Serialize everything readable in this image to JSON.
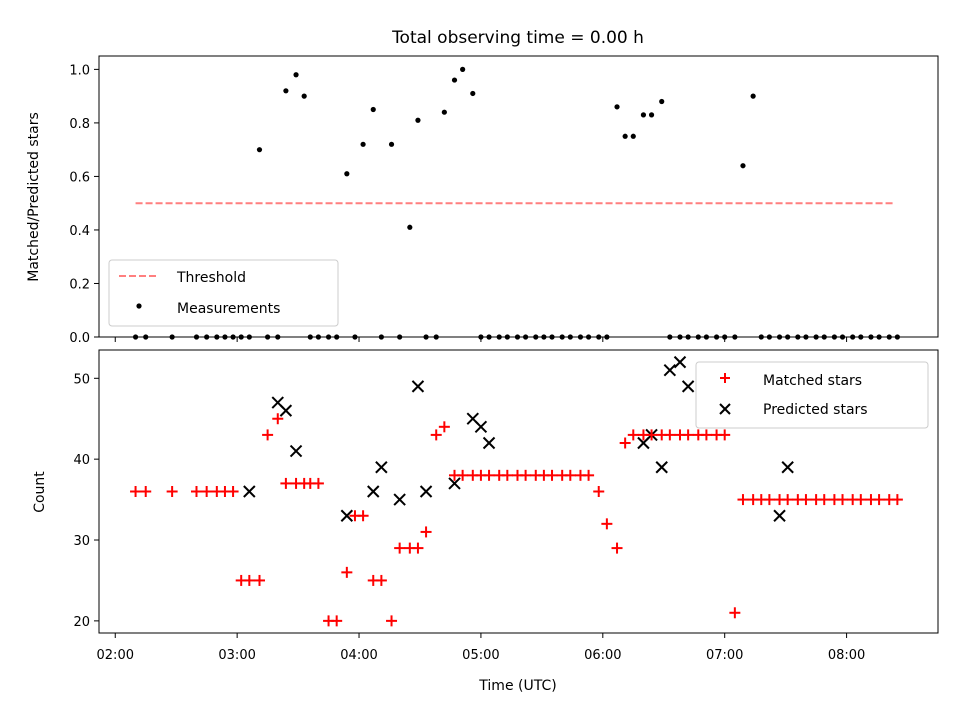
{
  "title": "Total observing time = 0.00 h",
  "xlabel": "Time (UTC)",
  "xticks": [
    "02:00",
    "03:00",
    "04:00",
    "05:00",
    "06:00",
    "07:00",
    "08:00"
  ],
  "chart_data": [
    {
      "type": "scatter",
      "ylabel": "Matched/Predicted stars",
      "xlim": [
        "01:52",
        "08:45"
      ],
      "ylim": [
        0,
        1.05
      ],
      "yticks": [
        "0.0",
        "0.2",
        "0.4",
        "0.6",
        "0.8",
        "1.0"
      ],
      "legend_position": "lower-left",
      "series": [
        {
          "name": "Threshold",
          "kind": "line",
          "style": "dashed",
          "color": "#ff7f7f",
          "x": [
            "02:10",
            "08:23"
          ],
          "y": [
            0.5,
            0.5
          ]
        },
        {
          "name": "Measurements",
          "kind": "scatter",
          "color": "#000000",
          "x": [
            "02:10",
            "02:15",
            "02:28",
            "02:40",
            "02:45",
            "02:50",
            "02:54",
            "02:58",
            "03:02",
            "03:06",
            "03:11",
            "03:15",
            "03:20",
            "03:24",
            "03:29",
            "03:33",
            "03:36",
            "03:40",
            "03:45",
            "03:49",
            "03:54",
            "03:58",
            "04:02",
            "04:07",
            "04:11",
            "04:16",
            "04:20",
            "04:25",
            "04:29",
            "04:33",
            "04:38",
            "04:42",
            "04:47",
            "04:51",
            "04:56",
            "05:00",
            "05:04",
            "05:09",
            "05:13",
            "05:18",
            "05:22",
            "05:27",
            "05:31",
            "05:35",
            "05:40",
            "05:44",
            "05:49",
            "05:53",
            "05:58",
            "06:02",
            "06:07",
            "06:11",
            "06:15",
            "06:20",
            "06:24",
            "06:29",
            "06:33",
            "06:38",
            "06:42",
            "06:47",
            "06:51",
            "06:56",
            "07:00",
            "07:05",
            "07:09",
            "07:14",
            "07:18",
            "07:22",
            "07:27",
            "07:31",
            "07:36",
            "07:40",
            "07:45",
            "07:49",
            "07:54",
            "07:58",
            "08:03",
            "08:07",
            "08:12",
            "08:16",
            "08:21",
            "08:25"
          ],
          "y": [
            0.0,
            0.0,
            0.0,
            0.0,
            0.0,
            0.0,
            0.0,
            0.0,
            0.0,
            0.0,
            0.7,
            0.0,
            0.0,
            0.92,
            0.98,
            0.9,
            0.0,
            0.0,
            0.0,
            0.0,
            0.61,
            0.0,
            0.72,
            0.85,
            0.0,
            0.72,
            0.0,
            0.41,
            0.81,
            0.0,
            0.0,
            0.84,
            0.96,
            1.0,
            0.91,
            0.0,
            0.0,
            0.0,
            0.0,
            0.0,
            0.0,
            0.0,
            0.0,
            0.0,
            0.0,
            0.0,
            0.0,
            0.0,
            0.0,
            0.0,
            0.86,
            0.75,
            0.75,
            0.83,
            0.83,
            0.88,
            0.0,
            0.0,
            0.0,
            0.0,
            0.0,
            0.0,
            0.0,
            0.0,
            0.64,
            0.9,
            0.0,
            0.0,
            0.0,
            0.0,
            0.0,
            0.0,
            0.0,
            0.0,
            0.0,
            0.0,
            0.0,
            0.0,
            0.0,
            0.0,
            0.0,
            0.0
          ]
        }
      ]
    },
    {
      "type": "scatter",
      "ylabel": "Count",
      "xlim": [
        "01:52",
        "08:45"
      ],
      "ylim": [
        18.5,
        53.5
      ],
      "yticks": [
        "20",
        "30",
        "40",
        "50"
      ],
      "legend_position": "upper-right",
      "series": [
        {
          "name": "Matched stars",
          "kind": "scatter",
          "marker": "plus",
          "color": "#ff0000",
          "x": [
            "02:10",
            "02:15",
            "02:28",
            "02:40",
            "02:45",
            "02:50",
            "02:54",
            "02:58",
            "03:02",
            "03:06",
            "03:11",
            "03:15",
            "03:20",
            "03:24",
            "03:29",
            "03:33",
            "03:36",
            "03:40",
            "03:45",
            "03:49",
            "03:54",
            "03:58",
            "04:02",
            "04:07",
            "04:11",
            "04:16",
            "04:20",
            "04:25",
            "04:29",
            "04:33",
            "04:38",
            "04:42",
            "04:47",
            "04:51",
            "04:56",
            "05:00",
            "05:04",
            "05:09",
            "05:13",
            "05:18",
            "05:22",
            "05:27",
            "05:31",
            "05:35",
            "05:40",
            "05:44",
            "05:49",
            "05:53",
            "05:58",
            "06:02",
            "06:07",
            "06:11",
            "06:15",
            "06:20",
            "06:24",
            "06:29",
            "06:33",
            "06:38",
            "06:42",
            "06:47",
            "06:51",
            "06:56",
            "07:00",
            "07:05",
            "07:09",
            "07:14",
            "07:18",
            "07:22",
            "07:27",
            "07:31",
            "07:36",
            "07:40",
            "07:45",
            "07:49",
            "07:54",
            "07:58",
            "08:03",
            "08:07",
            "08:12",
            "08:16",
            "08:21",
            "08:25"
          ],
          "y": [
            36,
            36,
            36,
            36,
            36,
            36,
            36,
            36,
            25,
            25,
            25,
            43,
            45,
            37,
            37,
            37,
            37,
            37,
            20,
            20,
            26,
            33,
            33,
            25,
            25,
            20,
            29,
            29,
            29,
            31,
            43,
            44,
            38,
            38,
            38,
            38,
            38,
            38,
            38,
            38,
            38,
            38,
            38,
            38,
            38,
            38,
            38,
            38,
            36,
            32,
            29,
            42,
            43,
            43,
            43,
            43,
            43,
            43,
            43,
            43,
            43,
            43,
            43,
            21,
            35,
            35,
            35,
            35,
            35,
            35,
            35,
            35,
            35,
            35,
            35,
            35,
            35,
            35,
            35,
            35,
            35,
            35
          ]
        },
        {
          "name": "Predicted stars",
          "kind": "scatter",
          "marker": "x",
          "color": "#000000",
          "x": [
            "03:06",
            "03:20",
            "03:24",
            "03:29",
            "03:54",
            "04:07",
            "04:11",
            "04:20",
            "04:29",
            "04:33",
            "04:47",
            "04:56",
            "05:00",
            "05:04",
            "06:20",
            "06:24",
            "06:29",
            "06:33",
            "06:38",
            "06:42",
            "07:27",
            "07:31"
          ],
          "y": [
            36,
            47,
            46,
            41,
            33,
            36,
            39,
            35,
            49,
            36,
            37,
            45,
            44,
            42,
            42,
            43,
            39,
            51,
            52,
            49,
            33,
            39
          ]
        }
      ]
    }
  ]
}
